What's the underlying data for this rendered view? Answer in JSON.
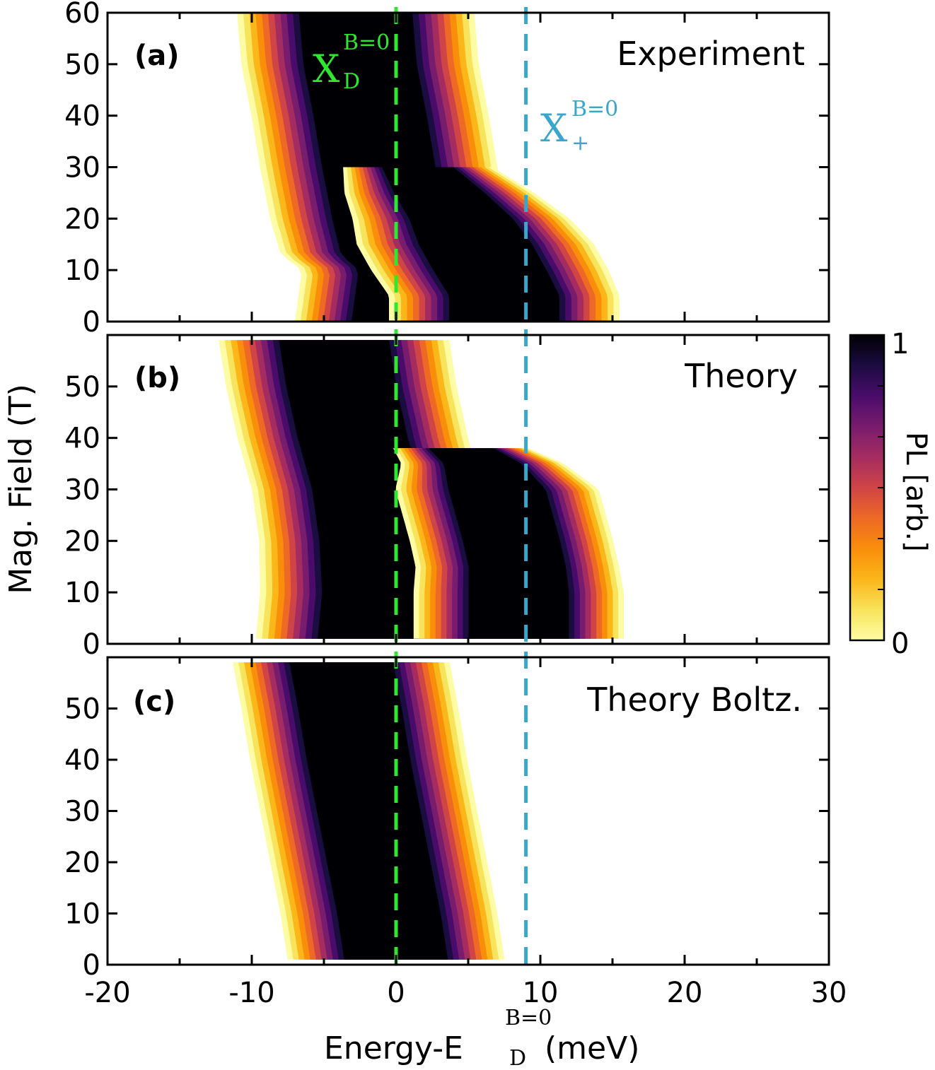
{
  "chart_data": {
    "type": "heatmap",
    "x_axis": {
      "label": "Energy-E",
      "label_sub": "D",
      "label_sup": "B=0",
      "label_suffix": "(meV)",
      "range": [
        -20,
        30
      ],
      "ticks": [
        -20,
        -10,
        0,
        10,
        20,
        30
      ],
      "tick_labels": [
        "-20",
        "-10",
        "0",
        "10",
        "20",
        "30"
      ]
    },
    "y_axis": {
      "label": "Mag. Field (T)",
      "range": [
        0,
        60
      ],
      "ticks": [
        0,
        10,
        20,
        30,
        40,
        50,
        60
      ],
      "tick_labels": [
        "0",
        "10",
        "20",
        "30",
        "40",
        "50",
        "60"
      ]
    },
    "colorbar": {
      "label": "PL [arb.]",
      "min_label": "0",
      "max_label": "1",
      "colormap": "inferno_r",
      "colors": [
        "#fdfca4",
        "#f8e35c",
        "#fbb61a",
        "#f98e0b",
        "#ed6925",
        "#cf4446",
        "#a52c60",
        "#781c6d",
        "#4a0c6b",
        "#1b0c41",
        "#000004"
      ]
    },
    "reference_lines": [
      {
        "x": 0,
        "color": "#2ee82e",
        "label_main": "X",
        "label_sub": "D",
        "label_sup": "B=0"
      },
      {
        "x": 9,
        "color": "#3ba6cc",
        "label_main": "X",
        "label_sub": "+",
        "label_sup": "B=0"
      }
    ],
    "panels": [
      {
        "tag": "(a)",
        "title": "Experiment",
        "y_max": 60,
        "show_top_tick_label": true,
        "peak_lines": [
          {
            "name": "XD",
            "points": [
              [
                0,
                0.5,
                3.2
              ],
              [
                10,
                1.0,
                3.2
              ],
              [
                13,
                0.0,
                3.4
              ],
              [
                20,
                -0.5,
                3.5
              ],
              [
                30,
                -1.2,
                3.5
              ],
              [
                40,
                -1.8,
                3.5
              ],
              [
                50,
                -2.5,
                3.5
              ],
              [
                60,
                -2.8,
                3.5
              ]
            ]
          },
          {
            "name": "X+",
            "points": [
              [
                0,
                7.5,
                3.4
              ],
              [
                5,
                7.5,
                3.4
              ],
              [
                10,
                6.5,
                3.5
              ],
              [
                15,
                5.5,
                3.5
              ],
              [
                20,
                4.5,
                3.2
              ],
              [
                25,
                3.0,
                2.8
              ],
              [
                30,
                1.5,
                2.2
              ]
            ]
          }
        ]
      },
      {
        "tag": "(b)",
        "title": "Theory",
        "y_max": 59,
        "show_top_tick_label": false,
        "peak_lines": [
          {
            "name": "XD",
            "points": [
              [
                1,
                -1.5,
                3.5
              ],
              [
                10,
                -1.2,
                3.5
              ],
              [
                20,
                -1.5,
                3.4
              ],
              [
                30,
                -2.0,
                3.4
              ],
              [
                40,
                -3.0,
                3.4
              ],
              [
                50,
                -3.8,
                3.4
              ],
              [
                59,
                -4.3,
                3.4
              ]
            ]
          },
          {
            "name": "X+",
            "points": [
              [
                1,
                8.5,
                3.1
              ],
              [
                10,
                8.5,
                3.1
              ],
              [
                15,
                8.4,
                3.0
              ],
              [
                20,
                8.0,
                3.0
              ],
              [
                25,
                7.5,
                3.0
              ],
              [
                30,
                7.0,
                3.0
              ],
              [
                35,
                6.0,
                2.4
              ],
              [
                38,
                4.5,
                2.0
              ]
            ]
          }
        ]
      },
      {
        "tag": "(c)",
        "title": "Theory Boltz.",
        "y_max": 59,
        "show_top_tick_label": false,
        "peak_lines": [
          {
            "name": "XD",
            "points": [
              [
                1,
                0.0,
                3.2
              ],
              [
                10,
                -0.5,
                3.2
              ],
              [
                20,
                -1.2,
                3.2
              ],
              [
                30,
                -1.9,
                3.2
              ],
              [
                40,
                -2.6,
                3.2
              ],
              [
                50,
                -3.2,
                3.2
              ],
              [
                59,
                -3.8,
                3.2
              ]
            ]
          }
        ]
      }
    ]
  }
}
